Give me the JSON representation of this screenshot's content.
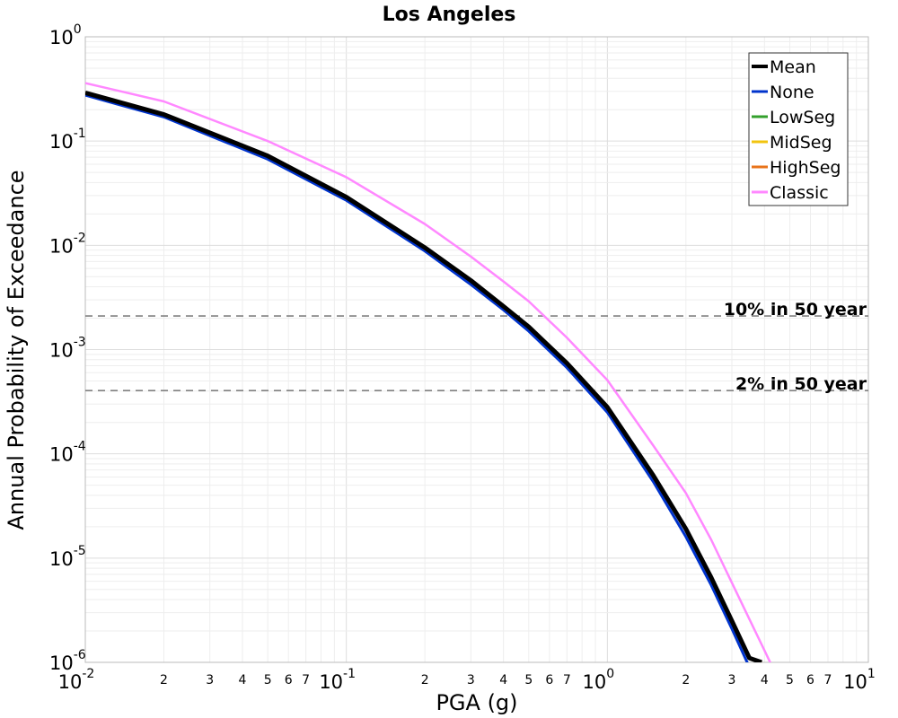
{
  "chart_data": {
    "type": "line",
    "title": "Los Angeles",
    "xlabel": "PGA (g)",
    "ylabel": "Annual Probability of Exceedance",
    "xscale": "log",
    "yscale": "log",
    "xlim": [
      0.01,
      10
    ],
    "ylim": [
      1e-06,
      1
    ],
    "grid": true,
    "legend_position": "top-right",
    "x_major_ticks": [
      {
        "base": "10",
        "exp": "-2"
      },
      {
        "base": "10",
        "exp": "-1"
      },
      {
        "base": "10",
        "exp": "0"
      },
      {
        "base": "10",
        "exp": "1"
      }
    ],
    "y_major_ticks": [
      {
        "base": "10",
        "exp": "0"
      },
      {
        "base": "10",
        "exp": "-1"
      },
      {
        "base": "10",
        "exp": "-2"
      },
      {
        "base": "10",
        "exp": "-3"
      },
      {
        "base": "10",
        "exp": "-4"
      },
      {
        "base": "10",
        "exp": "-5"
      },
      {
        "base": "10",
        "exp": "-6"
      }
    ],
    "x_minor_tick_labels": [
      "2",
      "3",
      "4",
      "5",
      "6",
      "7"
    ],
    "reference_lines": [
      {
        "label": "10% in 50 year",
        "y": 0.0021,
        "color": "#808080"
      },
      {
        "label": "2% in 50 year",
        "y": 0.000404,
        "color": "#808080"
      }
    ],
    "series": [
      {
        "name": "Mean",
        "color": "#000000",
        "x": [
          0.01,
          0.02,
          0.05,
          0.1,
          0.2,
          0.3,
          0.4,
          0.5,
          0.7,
          1.0,
          1.5,
          2.0,
          2.5,
          3.0,
          3.5,
          3.9
        ],
        "y": [
          0.29,
          0.18,
          0.072,
          0.029,
          0.0095,
          0.0046,
          0.0026,
          0.00165,
          0.00074,
          0.00028,
          6.2e-05,
          1.9e-05,
          6.5e-06,
          2.5e-06,
          1.1e-06,
          1e-06
        ]
      },
      {
        "name": "None",
        "color": "#0033cc",
        "x": [
          0.01,
          0.02,
          0.05,
          0.1,
          0.2,
          0.3,
          0.4,
          0.5,
          0.7,
          1.0,
          1.5,
          2.0,
          2.5,
          3.0,
          3.5,
          3.85
        ],
        "y": [
          0.275,
          0.17,
          0.067,
          0.027,
          0.0088,
          0.0042,
          0.0024,
          0.0015,
          0.00067,
          0.00025,
          5.4e-05,
          1.6e-05,
          5.5e-06,
          2.1e-06,
          9e-07,
          7e-07
        ]
      },
      {
        "name": "LowSeg",
        "color": "#33a02c",
        "x": [
          0.01,
          0.02,
          0.05,
          0.1,
          0.2,
          0.3,
          0.4,
          0.5,
          0.7,
          1.0,
          1.5,
          2.0,
          2.5,
          3.0,
          3.5,
          3.9
        ],
        "y": [
          0.288,
          0.178,
          0.071,
          0.0287,
          0.0094,
          0.00455,
          0.00257,
          0.00163,
          0.00073,
          0.000277,
          6.1e-05,
          1.88e-05,
          6.4e-06,
          2.5e-06,
          1.1e-06,
          1e-06
        ]
      },
      {
        "name": "MidSeg",
        "color": "#f2c40f",
        "x": [
          0.01,
          0.02,
          0.05,
          0.1,
          0.2,
          0.3,
          0.4,
          0.5,
          0.7,
          1.0,
          1.5,
          2.0,
          2.5,
          3.0,
          3.5,
          3.9
        ],
        "y": [
          0.289,
          0.179,
          0.0715,
          0.0288,
          0.00945,
          0.00457,
          0.00258,
          0.00164,
          0.000735,
          0.000278,
          6.15e-05,
          1.89e-05,
          6.4e-06,
          2.5e-06,
          1.1e-06,
          1e-06
        ]
      },
      {
        "name": "HighSeg",
        "color": "#e8731a",
        "x": [
          0.01,
          0.02,
          0.05,
          0.1,
          0.2,
          0.3,
          0.4,
          0.5,
          0.7,
          1.0,
          1.5,
          2.0,
          2.5,
          3.0,
          3.5,
          3.9
        ],
        "y": [
          0.287,
          0.177,
          0.0705,
          0.0285,
          0.0093,
          0.0045,
          0.00255,
          0.00162,
          0.00072,
          0.000275,
          6e-05,
          1.86e-05,
          6.3e-06,
          2.4e-06,
          1.1e-06,
          1e-06
        ]
      },
      {
        "name": "Classic",
        "color": "#ff88ff",
        "x": [
          0.01,
          0.02,
          0.05,
          0.1,
          0.2,
          0.3,
          0.4,
          0.5,
          0.7,
          1.0,
          1.5,
          2.0,
          2.5,
          3.0,
          3.5,
          4.0,
          4.5
        ],
        "y": [
          0.36,
          0.24,
          0.1,
          0.045,
          0.016,
          0.0078,
          0.0045,
          0.0029,
          0.0013,
          0.00051,
          0.00012,
          4.2e-05,
          1.5e-05,
          5.8e-06,
          2.6e-06,
          1.3e-06,
          7e-07
        ]
      }
    ]
  }
}
